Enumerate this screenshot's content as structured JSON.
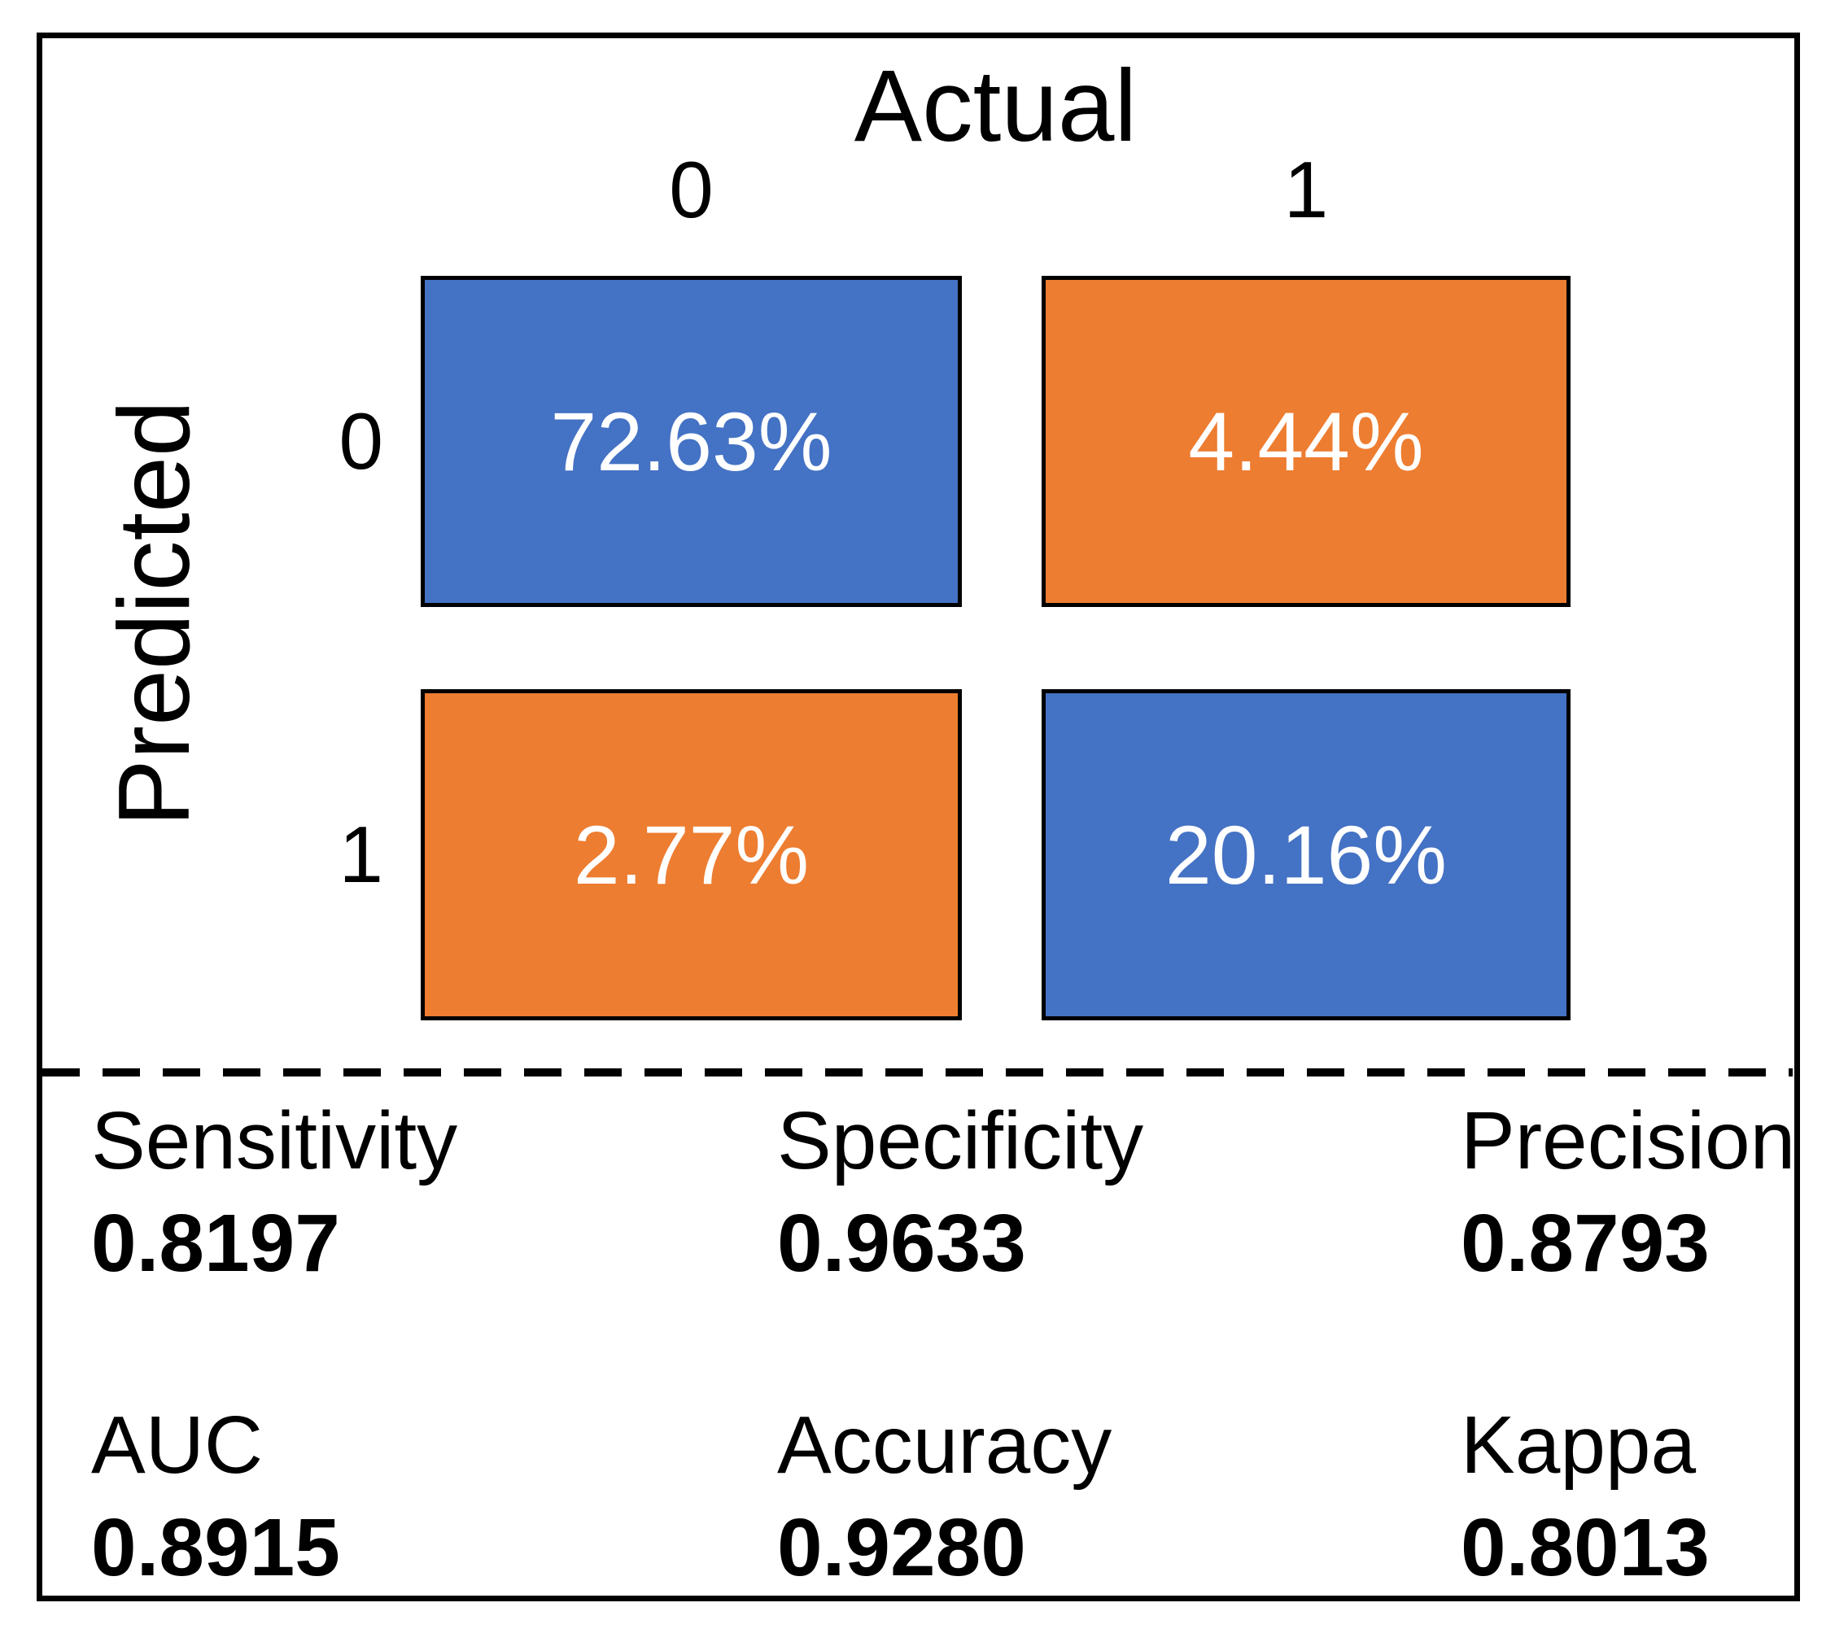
{
  "figure": {
    "x_axis_title": "Actual",
    "y_axis_title": "Predicted",
    "column_labels": [
      "0",
      "1"
    ],
    "row_labels": [
      "0",
      "1"
    ],
    "cells": [
      {
        "row": "0",
        "col": "0",
        "value": "72.63%",
        "color": "#4472C4"
      },
      {
        "row": "0",
        "col": "1",
        "value": "4.44%",
        "color": "#ED7D31"
      },
      {
        "row": "1",
        "col": "0",
        "value": "2.77%",
        "color": "#ED7D31"
      },
      {
        "row": "1",
        "col": "1",
        "value": "20.16%",
        "color": "#4472C4"
      }
    ]
  },
  "metrics": [
    {
      "label": "Sensitivity",
      "value": "0.8197"
    },
    {
      "label": "Specificity",
      "value": "0.9633"
    },
    {
      "label": "Precision",
      "value": "0.8793"
    },
    {
      "label": "AUC",
      "value": "0.8915"
    },
    {
      "label": "Accuracy",
      "value": "0.9280"
    },
    {
      "label": "Kappa",
      "value": "0.8013"
    }
  ],
  "colors": {
    "true_cell_blue": "#4472C4",
    "false_cell_orange": "#ED7D31",
    "border_black": "#000000",
    "cell_text_white": "#FFFFFF"
  },
  "chart_data": {
    "type": "heatmap",
    "subtype": "confusion-matrix",
    "x_label": "Actual",
    "y_label": "Predicted",
    "categories": [
      "0",
      "1"
    ],
    "matrix_percent": [
      [
        72.63,
        4.44
      ],
      [
        2.77,
        20.16
      ]
    ],
    "values_format": "percent of total",
    "cell_colors": [
      [
        "#4472C4",
        "#ED7D31"
      ],
      [
        "#ED7D31",
        "#4472C4"
      ]
    ],
    "legend": "none",
    "grid": "off",
    "metrics": {
      "sensitivity": 0.8197,
      "specificity": 0.9633,
      "precision": 0.8793,
      "auc": 0.8915,
      "accuracy": 0.928,
      "kappa": 0.8013
    }
  }
}
